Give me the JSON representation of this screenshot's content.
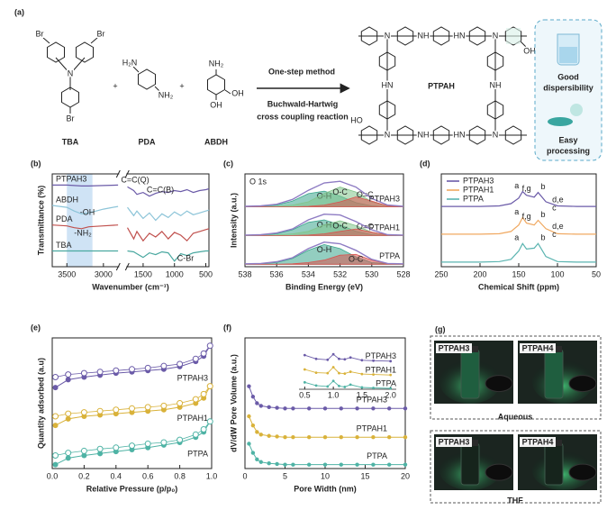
{
  "scheme": {
    "label": "(a)",
    "plus": "+",
    "reactants": [
      "TBA",
      "PDA",
      "ABDH"
    ],
    "atoms": {
      "br": "Br",
      "n": "N",
      "nh2": "NH₂",
      "h2n": "H₂N",
      "oh": "OH",
      "ho": "HO",
      "hn": "HN",
      "nh": "NH"
    },
    "conditions": [
      "One-step method",
      "Buchwald-Hartwig",
      "cross coupling reaction"
    ],
    "product": "PTPAH",
    "properties": [
      [
        "Good",
        "dispersibility"
      ],
      [
        "Easy",
        "processing"
      ]
    ]
  },
  "chart_data": [
    {
      "type": "line",
      "panel": "(b)",
      "xlabel": "Wavenumber (cm⁻¹)",
      "ylabel": "Transmittance (%)",
      "xlim": [
        3700,
        450
      ],
      "xbreak": [
        2800,
        1750
      ],
      "xticks": [
        3500,
        3000,
        1500,
        1000,
        500
      ],
      "ylim": [
        0,
        100
      ],
      "highlight": [
        3500,
        3150
      ],
      "x": [
        3700,
        3500,
        3400,
        3300,
        3200,
        3000,
        2800,
        1750,
        1650,
        1600,
        1500,
        1400,
        1300,
        1200,
        1100,
        1000,
        900,
        800,
        700,
        600,
        500,
        450
      ],
      "series": [
        {
          "name": "PTPAH3",
          "color": "#6b5ba8",
          "values": [
            88,
            88,
            87.5,
            87,
            87,
            87.5,
            88,
            86,
            82,
            78,
            80,
            76,
            79,
            81,
            80,
            82,
            81,
            83,
            80,
            82,
            83,
            84
          ]
        },
        {
          "name": "ABDH",
          "color": "#8cc4d8",
          "values": [
            66,
            64,
            60,
            57,
            58,
            62,
            65,
            64,
            55,
            60,
            52,
            58,
            50,
            57,
            53,
            59,
            55,
            60,
            56,
            58,
            60,
            61
          ]
        },
        {
          "name": "PDA",
          "color": "#c0504d",
          "values": [
            45,
            44,
            42,
            41,
            43,
            44,
            45,
            42,
            30,
            38,
            28,
            36,
            32,
            38,
            30,
            37,
            34,
            28,
            36,
            38,
            40,
            41
          ]
        },
        {
          "name": "TBA",
          "color": "#4aa8a0",
          "values": [
            17,
            17,
            17,
            17,
            17,
            17,
            17,
            17,
            16,
            14,
            10,
            15,
            13,
            16,
            15,
            6,
            14,
            12,
            15,
            16,
            17,
            17
          ]
        }
      ],
      "annotations": [
        "C=C(Q)",
        "C=C(B)",
        "-OH",
        "-NH₂",
        "C-Br"
      ]
    },
    {
      "type": "area",
      "panel": "(c)",
      "title": "O 1s",
      "xlabel": "Binding Energy (eV)",
      "ylabel": "Intensity (a.u.)",
      "xlim": [
        538,
        528
      ],
      "xticks": [
        538,
        536,
        534,
        532,
        530,
        528
      ],
      "ylim": [
        -0.3,
        11
      ],
      "x": [
        538,
        537,
        536,
        535,
        534,
        533,
        532,
        531,
        530,
        529,
        528
      ],
      "series": [
        {
          "name": "PTPAH3",
          "color": "#8e7cc3",
          "values": [
            7.05,
            7.1,
            7.3,
            7.9,
            9.0,
            9.9,
            10.1,
            9.4,
            8.0,
            7.2,
            7.05
          ],
          "components": [
            {
              "name": "O-H",
              "color": "#3aa68c",
              "values": [
                7,
                7.05,
                7.2,
                7.7,
                8.6,
                8.9,
                8.3,
                7.5,
                7.1,
                7,
                7
              ]
            },
            {
              "name": "O-C",
              "color": "#82c48a",
              "values": [
                7,
                7,
                7.05,
                7.2,
                7.6,
                8.6,
                9.4,
                8.8,
                7.6,
                7.1,
                7
              ]
            },
            {
              "name": "O=C",
              "color": "#d9534f",
              "values": [
                7,
                7,
                7,
                7,
                7.05,
                7.2,
                7.6,
                8.2,
                7.7,
                7.1,
                7
              ]
            }
          ]
        },
        {
          "name": "PTPAH1",
          "color": "#8e7cc3",
          "values": [
            3.55,
            3.6,
            3.8,
            4.3,
            5.4,
            6.1,
            6.0,
            5.2,
            4.2,
            3.6,
            3.55
          ],
          "components": [
            {
              "name": "O-H",
              "color": "#3aa68c",
              "values": [
                3.5,
                3.55,
                3.7,
                4.2,
                5.1,
                5.4,
                4.8,
                4.0,
                3.6,
                3.5,
                3.5
              ]
            },
            {
              "name": "O-C",
              "color": "#82c48a",
              "values": [
                3.5,
                3.5,
                3.55,
                3.7,
                4.0,
                4.8,
                5.3,
                4.7,
                3.9,
                3.55,
                3.5
              ]
            },
            {
              "name": "O=C",
              "color": "#d9534f",
              "values": [
                3.5,
                3.5,
                3.5,
                3.5,
                3.55,
                3.7,
                4.0,
                4.3,
                3.9,
                3.55,
                3.5
              ]
            }
          ]
        },
        {
          "name": "PTPA",
          "color": "#8e7cc3",
          "values": [
            0.05,
            0.1,
            0.3,
            0.8,
            1.9,
            2.7,
            2.5,
            1.7,
            0.6,
            0.1,
            0.05
          ],
          "components": [
            {
              "name": "O-H",
              "color": "#3aa68c",
              "values": [
                0,
                0.05,
                0.2,
                0.7,
                1.7,
                2.4,
                1.9,
                0.9,
                0.2,
                0.05,
                0
              ]
            },
            {
              "name": "O-C",
              "color": "#d9534f",
              "values": [
                0,
                0,
                0,
                0.05,
                0.2,
                0.5,
                1.1,
                1.2,
                0.5,
                0.05,
                0
              ]
            }
          ]
        }
      ]
    },
    {
      "type": "line",
      "panel": "(d)",
      "xlabel": "Chemical Shift (ppm)",
      "legend": "upper left",
      "xlim": [
        250,
        50
      ],
      "xticks": [
        250,
        200,
        150,
        100,
        50
      ],
      "ylim": [
        -0.5,
        9.5
      ],
      "x": [
        250,
        225,
        200,
        175,
        160,
        150,
        145,
        140,
        130,
        125,
        115,
        100,
        75,
        50
      ],
      "series": [
        {
          "name": "PTPAH3",
          "color": "#6b5ba8",
          "values": [
            6,
            6,
            6,
            6.05,
            6.3,
            6.9,
            7.6,
            7.2,
            7.0,
            7.5,
            6.5,
            6.05,
            6,
            6
          ]
        },
        {
          "name": "PTPAH1",
          "color": "#f0a860",
          "values": [
            3,
            3,
            3,
            3.05,
            3.3,
            4.0,
            4.8,
            4.2,
            4.0,
            4.5,
            3.6,
            3.05,
            3,
            3
          ]
        },
        {
          "name": "PTPA",
          "color": "#5ab4b0",
          "values": [
            0,
            0,
            0,
            0.05,
            0.3,
            1.2,
            2.0,
            1.4,
            1.5,
            2.0,
            0.6,
            0.05,
            0,
            0
          ]
        }
      ],
      "peak_labels": [
        "a",
        "b",
        "c",
        "d,e",
        "f,g"
      ]
    },
    {
      "type": "scatter",
      "panel": "(e)",
      "xlabel": "Relative Pressure (p/p₀)",
      "ylabel": "Quantity adsorbed (a.u)",
      "xlim": [
        0,
        1
      ],
      "xticks": [
        {
          "value": 0,
          "label": "0.0"
        },
        0.2,
        0.4,
        0.6,
        0.8,
        {
          "value": 1,
          "label": "1.0"
        }
      ],
      "ylim": [
        0,
        10
      ],
      "x": [
        0.02,
        0.1,
        0.2,
        0.3,
        0.4,
        0.5,
        0.6,
        0.7,
        0.8,
        0.9,
        0.95,
        0.99
      ],
      "series": [
        {
          "name": "PTPAH3",
          "color": "#6b5ba8",
          "values": [
            6.2,
            6.8,
            7.0,
            7.15,
            7.3,
            7.4,
            7.5,
            7.6,
            7.8,
            8.2,
            8.6,
            9.4
          ],
          "desorption": [
            7.0,
            7.2,
            7.3,
            7.4,
            7.5,
            7.6,
            7.7,
            7.85,
            8.0,
            8.4,
            8.8,
            9.4
          ]
        },
        {
          "name": "PTPAH1",
          "color": "#d9b23a",
          "values": [
            3.3,
            3.8,
            4.0,
            4.1,
            4.2,
            4.3,
            4.4,
            4.5,
            4.7,
            5.0,
            5.4,
            6.3
          ],
          "desorption": [
            4.0,
            4.2,
            4.3,
            4.4,
            4.5,
            4.6,
            4.7,
            4.8,
            5.0,
            5.3,
            5.7,
            6.3
          ]
        },
        {
          "name": "PTPA",
          "color": "#4fb3a5",
          "values": [
            0.3,
            0.8,
            1.0,
            1.15,
            1.3,
            1.45,
            1.6,
            1.8,
            2.0,
            2.4,
            2.8,
            3.6
          ],
          "desorption": [
            1.0,
            1.2,
            1.35,
            1.5,
            1.6,
            1.75,
            1.9,
            2.0,
            2.2,
            2.6,
            3.0,
            3.6
          ]
        }
      ]
    },
    {
      "type": "scatter",
      "panel": "(f)",
      "xlabel": "Pore Width (nm)",
      "ylabel": "dV/dW Pore Volume (a.u.)",
      "xlim": [
        0,
        20
      ],
      "xticks": [
        0,
        5,
        10,
        15,
        20
      ],
      "ylim": [
        0,
        10
      ],
      "x": [
        0.5,
        1,
        1.5,
        2,
        3,
        4,
        5,
        6,
        8,
        10,
        12,
        14,
        16,
        18,
        20
      ],
      "series": [
        {
          "name": "PTPAH3",
          "color": "#6b5ba8",
          "values": [
            6.3,
            5.5,
            5.0,
            4.8,
            4.7,
            4.65,
            4.6,
            4.6,
            4.6,
            4.6,
            4.6,
            4.6,
            4.6,
            4.6,
            4.6
          ]
        },
        {
          "name": "PTPAH1",
          "color": "#d9b23a",
          "values": [
            4.0,
            3.3,
            2.8,
            2.6,
            2.5,
            2.45,
            2.4,
            2.4,
            2.4,
            2.4,
            2.4,
            2.4,
            2.4,
            2.4,
            2.4
          ]
        },
        {
          "name": "PTPA",
          "color": "#4fb3a5",
          "values": [
            1.9,
            1.2,
            0.7,
            0.5,
            0.4,
            0.35,
            0.3,
            0.3,
            0.3,
            0.3,
            0.3,
            0.3,
            0.3,
            0.3,
            0.3
          ]
        }
      ],
      "inset": {
        "xlim": [
          0.4,
          2.1
        ],
        "xticks": [
          0.5,
          {
            "value": 1,
            "label": "1.0"
          },
          1.5,
          {
            "value": 2,
            "label": "2.0"
          }
        ],
        "ylim": [
          0,
          9
        ],
        "x": [
          0.5,
          0.7,
          0.9,
          1.0,
          1.1,
          1.2,
          1.3,
          1.5,
          1.7,
          2.0
        ],
        "series": [
          {
            "name": "PTPAH3",
            "color": "#6b5ba8",
            "values": [
              7.4,
              6.6,
              6.4,
              7.6,
              6.6,
              6.5,
              6.9,
              6.3,
              6.2,
              6.1
            ]
          },
          {
            "name": "PTPAH1",
            "color": "#d9b23a",
            "values": [
              4.3,
              3.6,
              3.5,
              4.8,
              3.5,
              3.4,
              3.8,
              3.3,
              3.2,
              3.1
            ]
          },
          {
            "name": "PTPA",
            "color": "#4fb3a5",
            "values": [
              1.5,
              0.8,
              0.6,
              1.8,
              0.7,
              0.5,
              1.0,
              0.4,
              0.3,
              0.2
            ]
          }
        ]
      }
    }
  ],
  "photos": {
    "label": "(g)",
    "groups": [
      {
        "solvent": "Aqueous",
        "samples": [
          "PTPAH3",
          "PTPAH4"
        ]
      },
      {
        "solvent": "THF",
        "samples": [
          "PTPAH3",
          "PTPAH4"
        ]
      }
    ]
  }
}
